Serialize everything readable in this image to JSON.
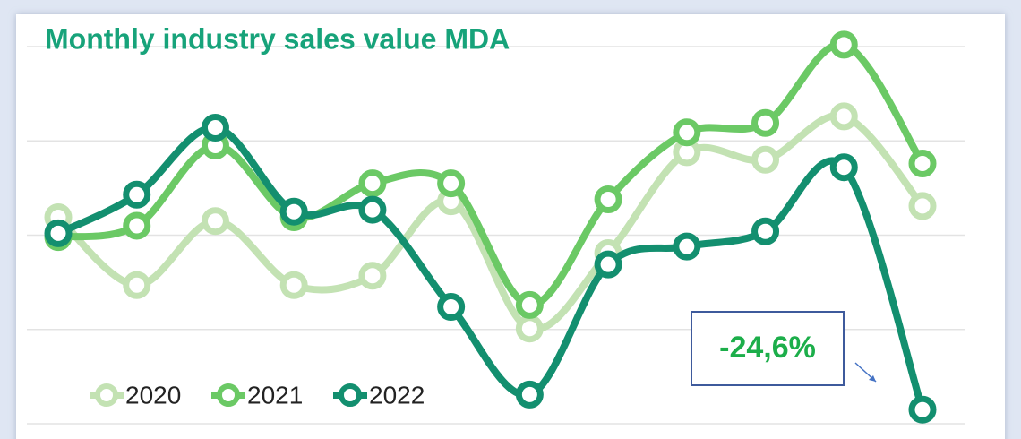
{
  "chart_data": {
    "type": "line",
    "title": "Monthly industry sales value MDA",
    "categories": [
      null,
      null,
      null,
      null,
      null,
      null,
      null,
      null,
      null,
      null,
      null,
      null
    ],
    "series": [
      {
        "name": "2020",
        "color": "#c3e2b3",
        "values": [
          2.19,
          1.47,
          2.15,
          1.47,
          1.57,
          2.36,
          1.01,
          1.81,
          2.88,
          2.8,
          3.26,
          2.31
        ]
      },
      {
        "name": "2021",
        "color": "#6bc965",
        "values": [
          1.98,
          2.1,
          2.95,
          2.19,
          2.55,
          2.55,
          1.26,
          2.38,
          3.09,
          3.19,
          4.02,
          2.76
        ]
      },
      {
        "name": "2022",
        "color": "#138f6f",
        "values": [
          2.02,
          2.43,
          3.14,
          2.25,
          2.27,
          1.24,
          0.31,
          1.69,
          1.88,
          2.04,
          2.72,
          0.15
        ]
      }
    ],
    "ylim": [
      0,
      4
    ],
    "yticks": [
      0,
      1,
      2,
      3,
      4
    ],
    "grid": true,
    "annotation": "-24,6%",
    "annotation_color": "#1cae4a",
    "legend": "bottom-left"
  }
}
